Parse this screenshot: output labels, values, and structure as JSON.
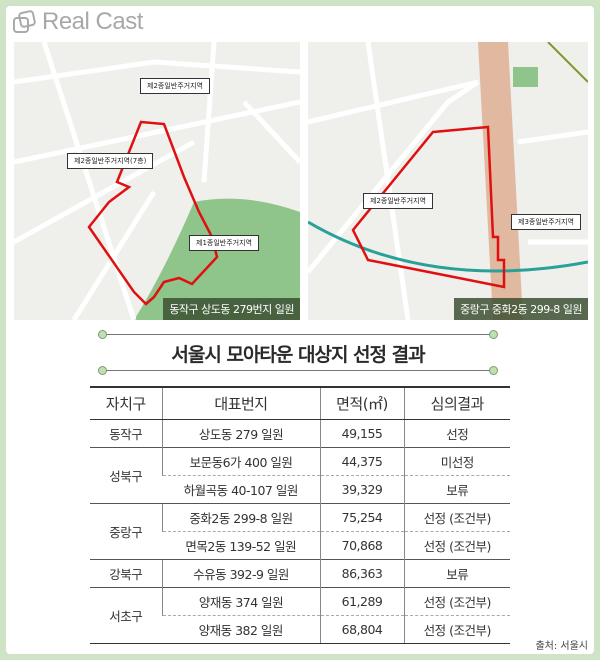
{
  "brand": {
    "logo_text": "Real Cast"
  },
  "maps": [
    {
      "caption": "동작구 상도동 279번지 일원",
      "labels": [
        "제2종일반주거지역",
        "제2종일반주거지역(7층)",
        "제1종일반주거지역"
      ]
    },
    {
      "caption": "중랑구 중화2동 299-8 일원",
      "labels": [
        "제2종일반주거지역",
        "제3종일반주거지역"
      ]
    }
  ],
  "title": "서울시 모아타운 대상지 선정 결과",
  "table": {
    "headers": [
      "자치구",
      "대표번지",
      "면적(㎡)",
      "심의결과"
    ],
    "rows": [
      {
        "gu": "동작구",
        "addr": "상도동 279 일원",
        "area": "49,155",
        "result": "선정"
      },
      {
        "gu": "성북구",
        "addr": "보문동6가 400 일원",
        "area": "44,375",
        "result": "미선정"
      },
      {
        "gu": "",
        "addr": "하월곡동 40-107 일원",
        "area": "39,329",
        "result": "보류"
      },
      {
        "gu": "중랑구",
        "addr": "중화2동 299-8 일원",
        "area": "75,254",
        "result": "선정 (조건부)"
      },
      {
        "gu": "",
        "addr": "면목2동 139-52 일원",
        "area": "70,868",
        "result": "선정 (조건부)"
      },
      {
        "gu": "강북구",
        "addr": "수유동 392-9 일원",
        "area": "86,363",
        "result": "보류"
      },
      {
        "gu": "서초구",
        "addr": "양재동 374 일원",
        "area": "61,289",
        "result": "선정 (조건부)"
      },
      {
        "gu": "",
        "addr": "양재동 382 일원",
        "area": "68,804",
        "result": "선정 (조건부)"
      }
    ]
  },
  "source": "출처: 서울시",
  "colors": {
    "border": "#cfe3c6",
    "boundary": "#e01010",
    "park": "#8fc58a"
  }
}
